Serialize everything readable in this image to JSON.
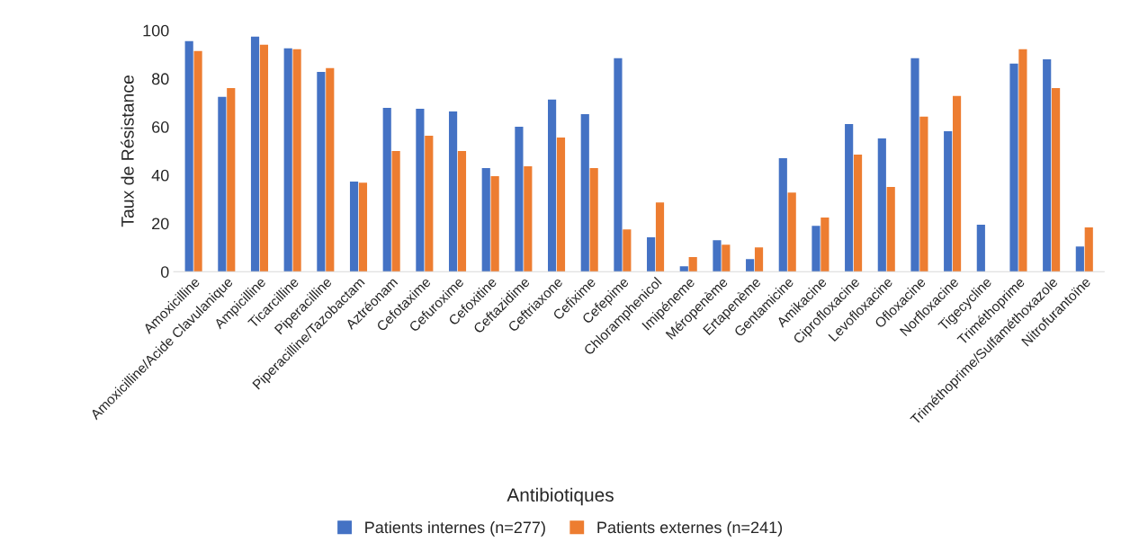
{
  "chart_data": {
    "type": "bar",
    "xlabel": "Antibiotiques",
    "ylabel": "Taux de Résistance",
    "categories": [
      "Amoxicilline",
      "Amoxicilline/Acide Clavulanique",
      "Ampicilline",
      "Ticarcilline",
      "Piperacilline",
      "Piperacilline/Tazobactam",
      "Aztréonam",
      "Cefotaxime",
      "Cefuroxime",
      "Cefoxitine",
      "Ceftazidime",
      "Ceftriaxone",
      "Cefixime",
      "Cefepime",
      "Chloramphenicol",
      "Imipéneme",
      "Méropenème",
      "Ertapenème",
      "Gentamicine",
      "Amikacine",
      "Ciprofloxacine",
      "Levofloxacine",
      "Ofloxacine",
      "Norfloxacine",
      "Tigecycline",
      "Triméthoprime",
      "Triméthoprime/Sulfaméthoxazole",
      "Nitrofurantoïne"
    ],
    "series": [
      {
        "name": "Patients internes (n=277)",
        "color": "#4472c4",
        "values": [
          95.5,
          72.4,
          97.4,
          92.5,
          82.8,
          37.3,
          67.9,
          67.5,
          66.4,
          42.9,
          60,
          71.3,
          65.3,
          88.4,
          14.2,
          2.2,
          13,
          5.2,
          47,
          19,
          61.2,
          55.2,
          88.4,
          58.2,
          19.4,
          86.2,
          88,
          10.4
        ]
      },
      {
        "name": "Patients externes (n=241)",
        "color": "#ed7d31",
        "values": [
          91.4,
          76.1,
          94,
          92.2,
          84.3,
          36.9,
          50,
          56.3,
          50,
          39.6,
          43.7,
          55.6,
          42.9,
          17.5,
          28.7,
          6,
          11.2,
          10,
          32.8,
          22.4,
          48.5,
          35.1,
          64.2,
          72.8,
          0,
          92.2,
          76.1,
          18.3
        ]
      }
    ],
    "ylim": [
      0,
      100
    ],
    "yticks": [
      0,
      20,
      40,
      60,
      80,
      100
    ],
    "grid": false,
    "legend": "bottom"
  }
}
